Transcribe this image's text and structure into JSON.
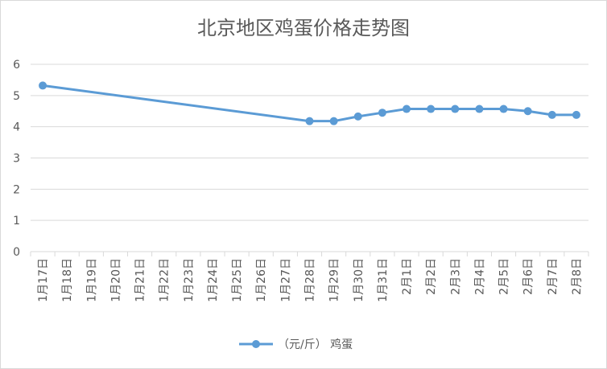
{
  "chart_data": {
    "type": "line",
    "title": "北京地区鸡蛋价格走势图",
    "xlabel": "",
    "ylabel": "",
    "categories": [
      "1月17日",
      "1月18日",
      "1月19日",
      "1月20日",
      "1月21日",
      "1月22日",
      "1月23日",
      "1月24日",
      "1月25日",
      "1月26日",
      "1月27日",
      "1月28日",
      "1月29日",
      "1月30日",
      "1月31日",
      "2月1日",
      "2月2日",
      "2月3日",
      "2月4日",
      "2月5日",
      "2月6日",
      "2月7日",
      "2月8日"
    ],
    "series": [
      {
        "name": "（元/斤） 鸡蛋",
        "values": [
          5.32,
          null,
          null,
          null,
          null,
          null,
          null,
          null,
          null,
          null,
          null,
          4.18,
          4.18,
          4.33,
          4.45,
          4.57,
          4.57,
          4.57,
          4.57,
          4.57,
          4.5,
          4.38,
          4.38
        ]
      }
    ],
    "ylim": [
      0,
      6
    ],
    "yticks": [
      0,
      1,
      2,
      3,
      4,
      5,
      6
    ],
    "grid": true,
    "legend": "bottom",
    "colors": {
      "line": "#5b9bd5",
      "grid": "#d9d9d9",
      "text": "#595959"
    }
  }
}
